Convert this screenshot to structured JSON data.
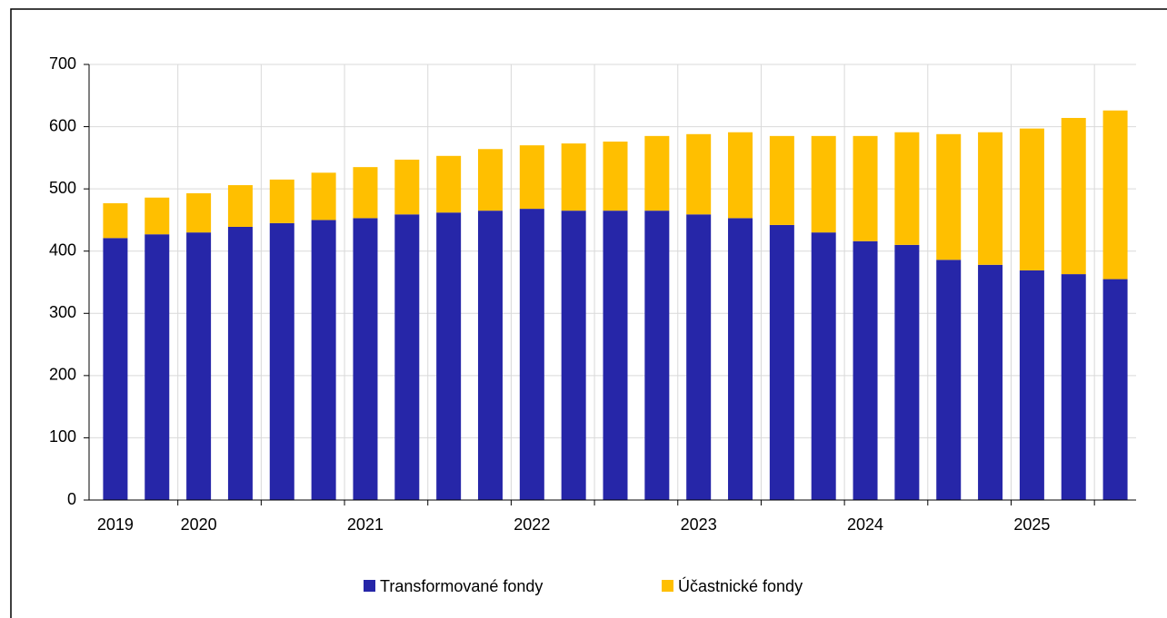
{
  "chart_data": {
    "type": "stacked-bar",
    "categories": [
      "2019",
      null,
      "2020",
      null,
      null,
      null,
      "2021",
      null,
      null,
      null,
      "2022",
      null,
      null,
      null,
      "2023",
      null,
      null,
      null,
      "2024",
      null,
      null,
      null,
      "2025",
      null,
      null
    ],
    "series": [
      {
        "name": "Transformované fondy",
        "color": "#2626a8",
        "values": [
          421,
          427,
          430,
          439,
          445,
          450,
          453,
          459,
          462,
          465,
          468,
          465,
          465,
          465,
          459,
          453,
          442,
          430,
          416,
          410,
          386,
          378,
          369,
          363,
          355
        ]
      },
      {
        "name": "Účastnické fondy",
        "color": "#ffbf00",
        "values": [
          56,
          59,
          63,
          67,
          70,
          76,
          82,
          88,
          91,
          99,
          102,
          108,
          111,
          120,
          129,
          138,
          143,
          155,
          169,
          181,
          202,
          213,
          228,
          251,
          271
        ]
      }
    ],
    "ylim": [
      0,
      700
    ],
    "yticks": [
      0,
      100,
      200,
      300,
      400,
      500,
      600,
      700
    ],
    "grid": true,
    "legend": "bottom"
  }
}
